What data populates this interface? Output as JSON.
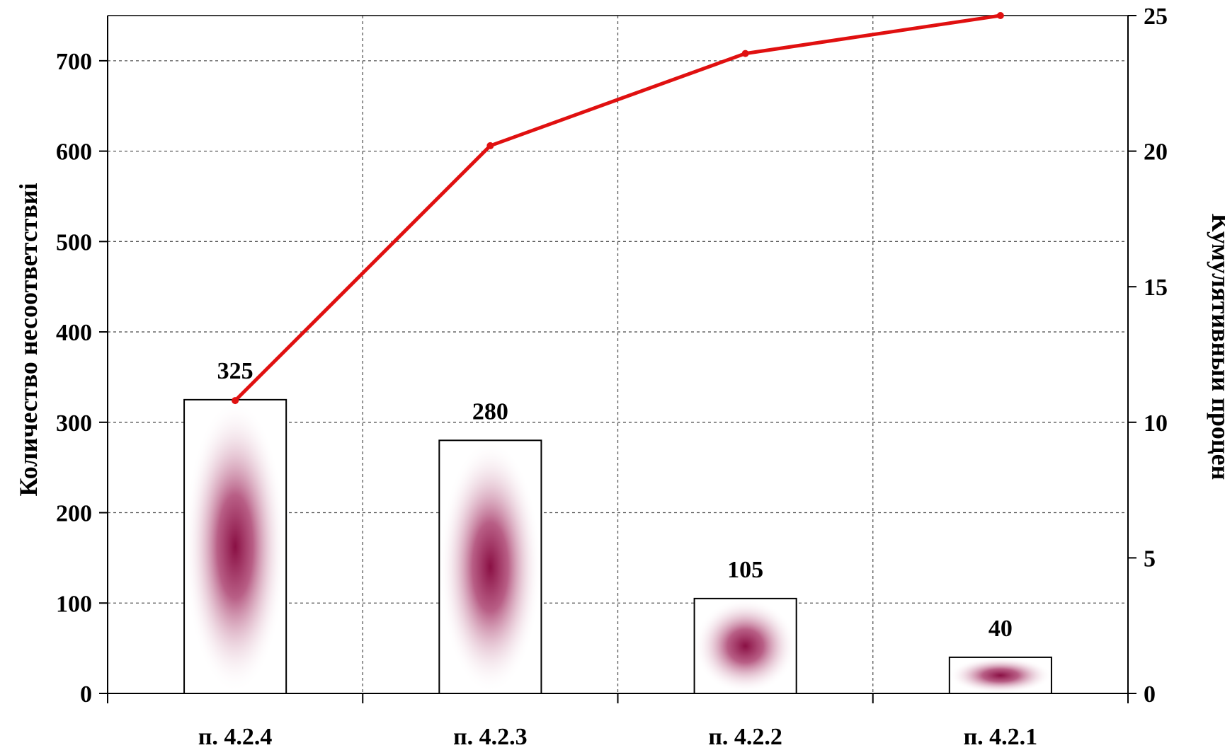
{
  "chart_data": {
    "type": "bar",
    "title": "",
    "ylabel": "Количество несоответствиі",
    "y2label": "Кумулятивный процен",
    "categories": [
      "п. 4.2.4",
      "п. 4.2.3",
      "п. 4.2.2",
      "п. 4.2.1"
    ],
    "series": [
      {
        "values": [
          325,
          280,
          105,
          40
        ],
        "axis": "left",
        "kind": "bar",
        "data_labels": [
          "325",
          "280",
          "105",
          "40"
        ]
      },
      {
        "values": [
          10.8,
          20.2,
          23.6,
          25.0
        ],
        "axis": "right",
        "kind": "line"
      }
    ],
    "ylim": [
      0,
      750
    ],
    "y2lim": [
      0,
      25
    ],
    "yticks": [
      "0",
      "100",
      "200",
      "300",
      "400",
      "500",
      "600",
      "700"
    ],
    "y2ticks": [
      "0",
      "5",
      "10",
      "15",
      "20",
      "25"
    ],
    "grid": true,
    "legend": "none",
    "colors": {
      "line": "#e01010",
      "bar_fill": "#9a1a52",
      "bar_edge": "#000000",
      "grid": "#555555"
    }
  }
}
